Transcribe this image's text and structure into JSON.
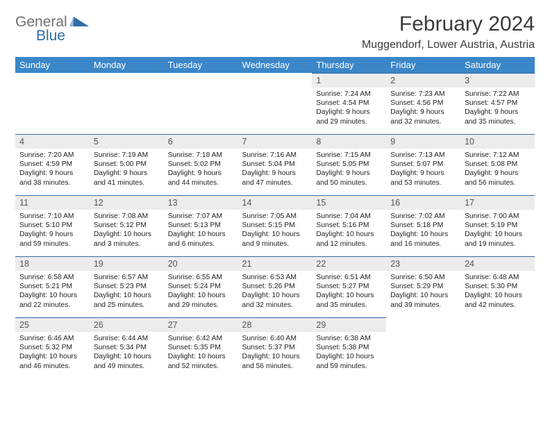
{
  "logo": {
    "general": "General",
    "blue": "Blue",
    "gray": "#6f7173",
    "blue_hex": "#2e6ea6"
  },
  "title": {
    "month": "February 2024",
    "location": "Muggendorf, Lower Austria, Austria"
  },
  "colors": {
    "header_bg": "#3a86c8",
    "header_fg": "#ffffff",
    "daynum_bg": "#ececec",
    "rule": "#2e6ea6"
  },
  "weekdays": [
    "Sunday",
    "Monday",
    "Tuesday",
    "Wednesday",
    "Thursday",
    "Friday",
    "Saturday"
  ],
  "weeks": [
    [
      {
        "n": "",
        "sr": "",
        "ss": "",
        "dl": ""
      },
      {
        "n": "",
        "sr": "",
        "ss": "",
        "dl": ""
      },
      {
        "n": "",
        "sr": "",
        "ss": "",
        "dl": ""
      },
      {
        "n": "",
        "sr": "",
        "ss": "",
        "dl": ""
      },
      {
        "n": "1",
        "sr": "7:24 AM",
        "ss": "4:54 PM",
        "dl": "9 hours and 29 minutes."
      },
      {
        "n": "2",
        "sr": "7:23 AM",
        "ss": "4:56 PM",
        "dl": "9 hours and 32 minutes."
      },
      {
        "n": "3",
        "sr": "7:22 AM",
        "ss": "4:57 PM",
        "dl": "9 hours and 35 minutes."
      }
    ],
    [
      {
        "n": "4",
        "sr": "7:20 AM",
        "ss": "4:59 PM",
        "dl": "9 hours and 38 minutes."
      },
      {
        "n": "5",
        "sr": "7:19 AM",
        "ss": "5:00 PM",
        "dl": "9 hours and 41 minutes."
      },
      {
        "n": "6",
        "sr": "7:18 AM",
        "ss": "5:02 PM",
        "dl": "9 hours and 44 minutes."
      },
      {
        "n": "7",
        "sr": "7:16 AM",
        "ss": "5:04 PM",
        "dl": "9 hours and 47 minutes."
      },
      {
        "n": "8",
        "sr": "7:15 AM",
        "ss": "5:05 PM",
        "dl": "9 hours and 50 minutes."
      },
      {
        "n": "9",
        "sr": "7:13 AM",
        "ss": "5:07 PM",
        "dl": "9 hours and 53 minutes."
      },
      {
        "n": "10",
        "sr": "7:12 AM",
        "ss": "5:08 PM",
        "dl": "9 hours and 56 minutes."
      }
    ],
    [
      {
        "n": "11",
        "sr": "7:10 AM",
        "ss": "5:10 PM",
        "dl": "9 hours and 59 minutes."
      },
      {
        "n": "12",
        "sr": "7:08 AM",
        "ss": "5:12 PM",
        "dl": "10 hours and 3 minutes."
      },
      {
        "n": "13",
        "sr": "7:07 AM",
        "ss": "5:13 PM",
        "dl": "10 hours and 6 minutes."
      },
      {
        "n": "14",
        "sr": "7:05 AM",
        "ss": "5:15 PM",
        "dl": "10 hours and 9 minutes."
      },
      {
        "n": "15",
        "sr": "7:04 AM",
        "ss": "5:16 PM",
        "dl": "10 hours and 12 minutes."
      },
      {
        "n": "16",
        "sr": "7:02 AM",
        "ss": "5:18 PM",
        "dl": "10 hours and 16 minutes."
      },
      {
        "n": "17",
        "sr": "7:00 AM",
        "ss": "5:19 PM",
        "dl": "10 hours and 19 minutes."
      }
    ],
    [
      {
        "n": "18",
        "sr": "6:58 AM",
        "ss": "5:21 PM",
        "dl": "10 hours and 22 minutes."
      },
      {
        "n": "19",
        "sr": "6:57 AM",
        "ss": "5:23 PM",
        "dl": "10 hours and 25 minutes."
      },
      {
        "n": "20",
        "sr": "6:55 AM",
        "ss": "5:24 PM",
        "dl": "10 hours and 29 minutes."
      },
      {
        "n": "21",
        "sr": "6:53 AM",
        "ss": "5:26 PM",
        "dl": "10 hours and 32 minutes."
      },
      {
        "n": "22",
        "sr": "6:51 AM",
        "ss": "5:27 PM",
        "dl": "10 hours and 35 minutes."
      },
      {
        "n": "23",
        "sr": "6:50 AM",
        "ss": "5:29 PM",
        "dl": "10 hours and 39 minutes."
      },
      {
        "n": "24",
        "sr": "6:48 AM",
        "ss": "5:30 PM",
        "dl": "10 hours and 42 minutes."
      }
    ],
    [
      {
        "n": "25",
        "sr": "6:46 AM",
        "ss": "5:32 PM",
        "dl": "10 hours and 46 minutes."
      },
      {
        "n": "26",
        "sr": "6:44 AM",
        "ss": "5:34 PM",
        "dl": "10 hours and 49 minutes."
      },
      {
        "n": "27",
        "sr": "6:42 AM",
        "ss": "5:35 PM",
        "dl": "10 hours and 52 minutes."
      },
      {
        "n": "28",
        "sr": "6:40 AM",
        "ss": "5:37 PM",
        "dl": "10 hours and 56 minutes."
      },
      {
        "n": "29",
        "sr": "6:38 AM",
        "ss": "5:38 PM",
        "dl": "10 hours and 59 minutes."
      },
      {
        "n": "",
        "sr": "",
        "ss": "",
        "dl": ""
      },
      {
        "n": "",
        "sr": "",
        "ss": "",
        "dl": ""
      }
    ]
  ],
  "labels": {
    "sunrise": "Sunrise: ",
    "sunset": "Sunset: ",
    "daylight": "Daylight: "
  }
}
